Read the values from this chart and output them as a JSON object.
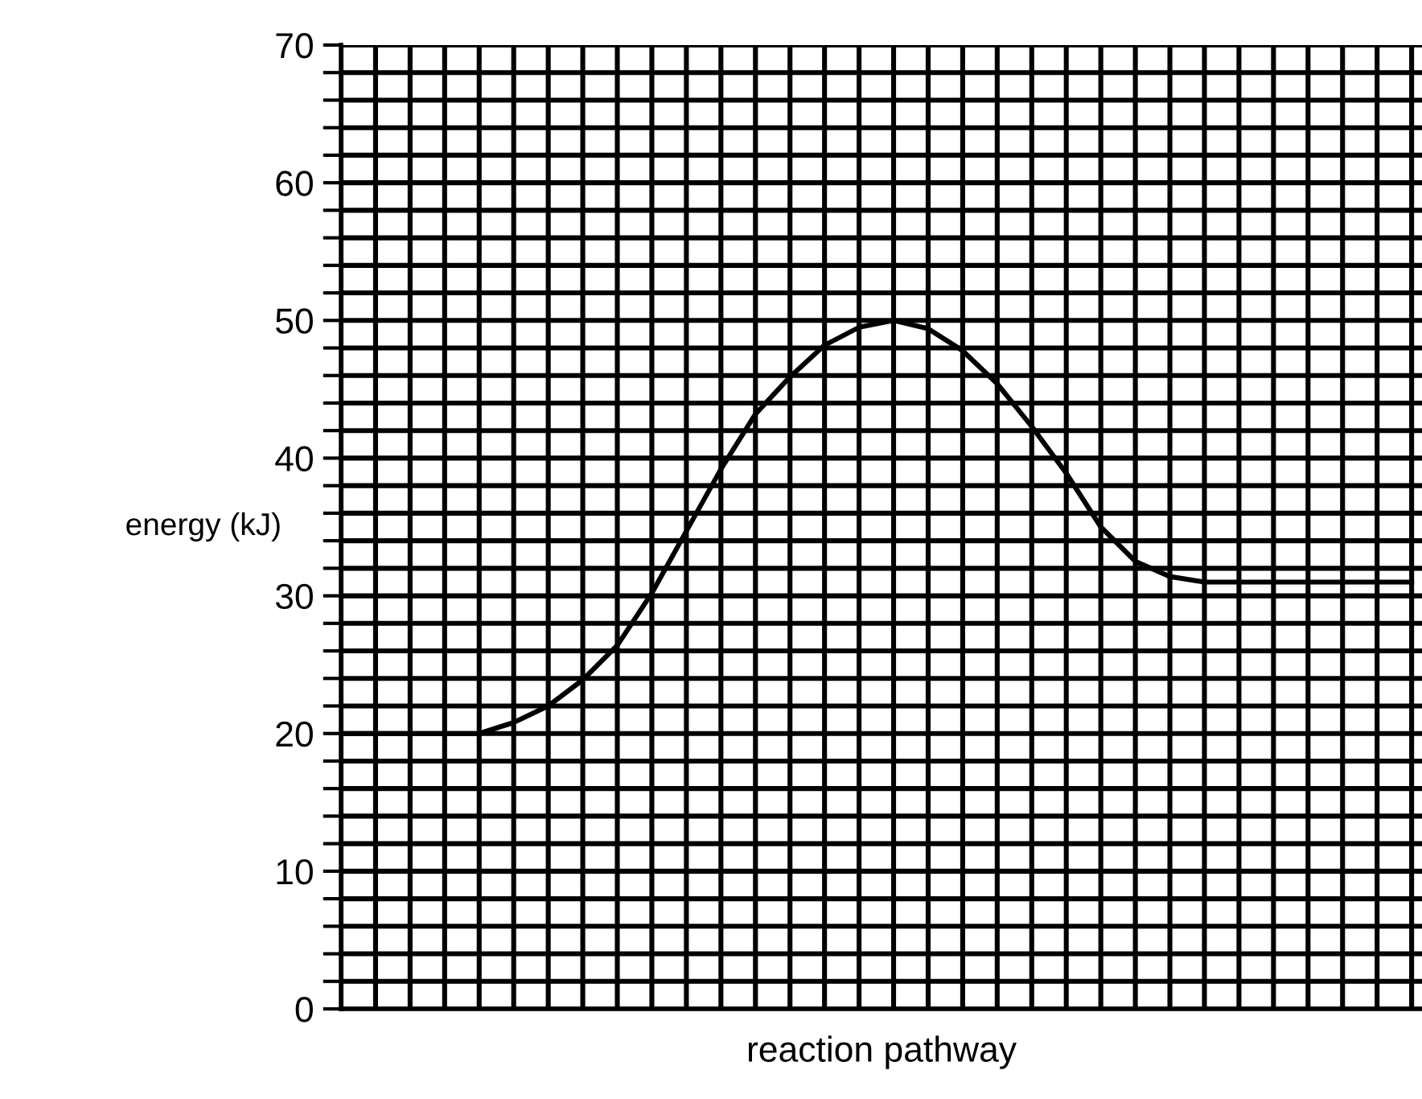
{
  "chart_data": {
    "type": "line",
    "xlabel": "reaction pathway",
    "ylabel": "energy (kJ)",
    "categories": [
      null,
      null,
      null,
      null,
      null,
      null,
      null,
      null,
      null,
      null,
      null,
      null,
      null,
      null,
      null,
      null,
      null,
      null,
      null,
      null,
      null,
      null,
      null,
      null,
      null,
      null,
      null,
      null,
      null,
      null,
      null,
      null
    ],
    "series": [
      {
        "color": "#000000",
        "values": [
          20,
          20,
          20,
          20,
          20,
          20.8,
          22.0,
          23.9,
          26.4,
          30.2,
          34.7,
          39.2,
          43.2,
          45.9,
          48.2,
          49.5,
          50,
          49.4,
          47.8,
          45.4,
          42.3,
          38.9,
          35.0,
          32.5,
          31.4,
          31,
          31,
          31,
          31,
          31,
          31,
          31
        ]
      }
    ],
    "ylim": [
      0,
      70
    ],
    "yticks": [
      0,
      {
        "value": 2,
        "label": null
      },
      {
        "value": 4,
        "label": null
      },
      {
        "value": 6,
        "label": null
      },
      {
        "value": 8,
        "label": null
      },
      10,
      {
        "value": 12,
        "label": null
      },
      {
        "value": 14,
        "label": null
      },
      {
        "value": 16,
        "label": null
      },
      {
        "value": 18,
        "label": null
      },
      20,
      {
        "value": 22,
        "label": null
      },
      {
        "value": 24,
        "label": null
      },
      {
        "value": 26,
        "label": null
      },
      {
        "value": 28,
        "label": null
      },
      30,
      {
        "value": 32,
        "label": null
      },
      {
        "value": 34,
        "label": null
      },
      {
        "value": 36,
        "label": null
      },
      {
        "value": 38,
        "label": null
      },
      40,
      {
        "value": 42,
        "label": null
      },
      {
        "value": 44,
        "label": null
      },
      {
        "value": 46,
        "label": null
      },
      {
        "value": 48,
        "label": null
      },
      50,
      {
        "value": 52,
        "label": null
      },
      {
        "value": 54,
        "label": null
      },
      {
        "value": 56,
        "label": null
      },
      {
        "value": 58,
        "label": null
      },
      60,
      {
        "value": 62,
        "label": null
      },
      {
        "value": 64,
        "label": null
      },
      {
        "value": 66,
        "label": null
      },
      {
        "value": 68,
        "label": null
      },
      70
    ],
    "grid": true,
    "tick_labels": "y",
    "marker": "none",
    "line_style": "solid"
  }
}
